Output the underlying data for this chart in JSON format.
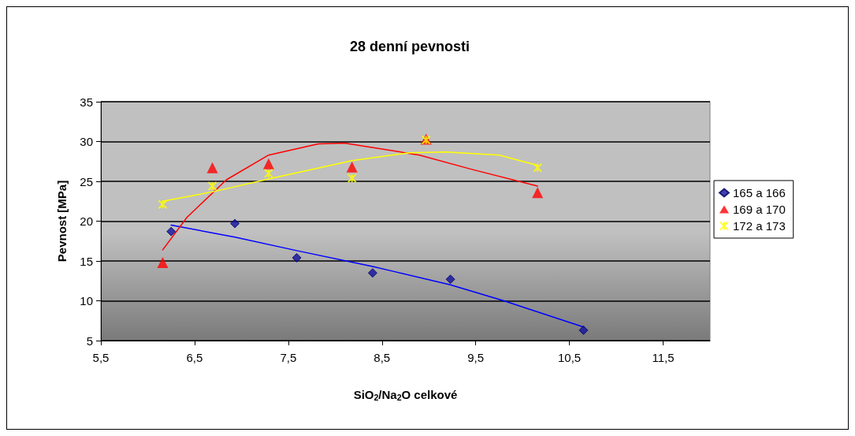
{
  "chart_data": {
    "type": "scatter",
    "title": "28 denní pevnosti",
    "xlabel": "SiO$_{2}$/Na$_{2}$O celkové",
    "ylabel": "Pevnost [MPa]",
    "xlim": [
      5.5,
      12
    ],
    "xticks": [
      {
        "value": 5.5,
        "label": "5,5"
      },
      {
        "value": 6.5,
        "label": "6,5"
      },
      {
        "value": 7.5,
        "label": "7,5"
      },
      {
        "value": 8.5,
        "label": "8,5"
      },
      {
        "value": 9.5,
        "label": "9,5"
      },
      {
        "value": 10.5,
        "label": "10,5"
      },
      {
        "value": 11.5,
        "label": "11,5"
      }
    ],
    "ylim": [
      5,
      35
    ],
    "yticks": [
      5,
      10,
      15,
      20,
      25,
      30,
      35
    ],
    "grid": "y",
    "legend": "right",
    "series": [
      {
        "name": "165 a 166",
        "color": "#1010a0",
        "marker": "diamond",
        "x": [
          6.25,
          6.93,
          7.59,
          8.4,
          9.23,
          10.65
        ],
        "values": [
          18.7,
          19.7,
          15.4,
          13.5,
          12.7,
          6.3
        ]
      },
      {
        "name": "169 a 170",
        "color": "#ff0000",
        "marker": "triangle",
        "x": [
          6.16,
          6.69,
          7.29,
          8.18,
          8.97,
          10.16
        ],
        "values": [
          14.8,
          26.7,
          27.2,
          26.8,
          30.3,
          23.6
        ]
      },
      {
        "name": "172 a 173",
        "color": "#ffff00",
        "marker": "cross",
        "x": [
          6.16,
          6.69,
          7.29,
          8.18,
          8.97,
          10.16
        ],
        "values": [
          22.1,
          24.4,
          26.0,
          25.4,
          30.2,
          26.7
        ]
      },
      {
        "type": "line",
        "color": "#0000ff",
        "marker": "none",
        "x": [
          6.25,
          6.93,
          7.59,
          8.4,
          8.62,
          9.23,
          9.8,
          10.65
        ],
        "values": [
          19.5,
          18.0,
          16.3,
          14.3,
          13.7,
          12.0,
          10.0,
          6.7
        ]
      },
      {
        "type": "line",
        "color": "#ff0000",
        "marker": "none",
        "x": [
          6.16,
          6.42,
          6.84,
          7.29,
          7.82,
          8.1,
          8.74,
          8.9,
          9.46,
          10.16
        ],
        "values": [
          16.4,
          20.5,
          25.2,
          28.3,
          29.7,
          29.8,
          28.6,
          28.3,
          26.5,
          24.4
        ]
      },
      {
        "type": "line",
        "color": "#ffff00",
        "marker": "none",
        "x": [
          6.16,
          6.7,
          7.29,
          8.18,
          8.8,
          9.18,
          9.75,
          10.16
        ],
        "values": [
          22.5,
          23.7,
          25.3,
          27.6,
          28.6,
          28.7,
          28.3,
          27.0
        ]
      }
    ]
  }
}
